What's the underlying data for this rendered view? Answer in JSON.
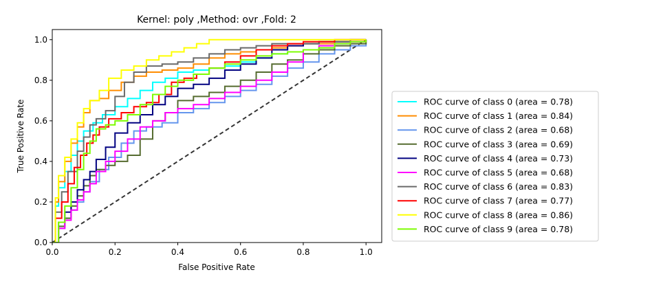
{
  "chart_data": {
    "type": "line",
    "title": "Kernel: poly ,Method: ovr ,Fold: 2",
    "xlabel": "False Positive Rate",
    "ylabel": "True Positive Rate",
    "xlim": [
      0,
      1.05
    ],
    "ylim": [
      0,
      1.05
    ],
    "xticks": [
      "0.0",
      "0.2",
      "0.4",
      "0.6",
      "0.8",
      "1.0"
    ],
    "yticks": [
      "0.0",
      "0.2",
      "0.4",
      "0.6",
      "0.8",
      "1.0"
    ],
    "grid": false,
    "legend_position": "right",
    "diagonal": {
      "x": [
        0,
        1
      ],
      "y": [
        0,
        1
      ],
      "color": "#333333",
      "style": "dashed"
    },
    "series": [
      {
        "name": "ROC curve of class 0 (area = 0.78)",
        "color": "#00FFFF",
        "x": [
          0,
          0.01,
          0.02,
          0.04,
          0.06,
          0.08,
          0.1,
          0.13,
          0.16,
          0.2,
          0.24,
          0.28,
          0.32,
          0.36,
          0.4,
          0.45,
          0.5,
          0.55,
          0.6,
          0.65,
          0.7,
          0.75,
          0.8,
          0.85,
          0.9,
          0.95,
          1.0
        ],
        "y": [
          0,
          0.18,
          0.27,
          0.35,
          0.43,
          0.5,
          0.55,
          0.59,
          0.63,
          0.67,
          0.71,
          0.75,
          0.79,
          0.81,
          0.84,
          0.85,
          0.86,
          0.87,
          0.89,
          0.91,
          0.93,
          0.94,
          0.95,
          0.96,
          0.98,
          0.99,
          1.0
        ]
      },
      {
        "name": "ROC curve of class 1 (area = 0.84)",
        "color": "#FF8C00",
        "x": [
          0,
          0.01,
          0.02,
          0.04,
          0.06,
          0.08,
          0.1,
          0.12,
          0.15,
          0.18,
          0.22,
          0.26,
          0.3,
          0.35,
          0.4,
          0.45,
          0.5,
          0.55,
          0.6,
          0.65,
          0.7,
          0.75,
          0.8,
          0.85,
          0.9,
          0.95,
          1.0
        ],
        "y": [
          0,
          0.2,
          0.3,
          0.4,
          0.49,
          0.57,
          0.64,
          0.7,
          0.71,
          0.75,
          0.79,
          0.82,
          0.84,
          0.85,
          0.86,
          0.88,
          0.91,
          0.93,
          0.94,
          0.95,
          0.96,
          0.97,
          0.98,
          0.98,
          0.99,
          0.99,
          1.0
        ]
      },
      {
        "name": "ROC curve of class 2 (area = 0.68)",
        "color": "#6495ED",
        "x": [
          0,
          0.02,
          0.04,
          0.06,
          0.08,
          0.1,
          0.12,
          0.15,
          0.18,
          0.22,
          0.26,
          0.3,
          0.35,
          0.4,
          0.45,
          0.5,
          0.55,
          0.6,
          0.65,
          0.7,
          0.75,
          0.8,
          0.85,
          0.9,
          0.95,
          1.0
        ],
        "y": [
          0,
          0.07,
          0.12,
          0.16,
          0.2,
          0.25,
          0.3,
          0.36,
          0.42,
          0.49,
          0.55,
          0.57,
          0.59,
          0.64,
          0.66,
          0.69,
          0.72,
          0.75,
          0.78,
          0.82,
          0.86,
          0.89,
          0.93,
          0.95,
          0.97,
          1.0
        ]
      },
      {
        "name": "ROC curve of class 3 (area = 0.69)",
        "color": "#556B2F",
        "x": [
          0,
          0.02,
          0.04,
          0.06,
          0.08,
          0.1,
          0.12,
          0.14,
          0.17,
          0.2,
          0.24,
          0.28,
          0.32,
          0.36,
          0.4,
          0.45,
          0.5,
          0.55,
          0.6,
          0.65,
          0.7,
          0.75,
          0.8,
          0.85,
          0.9,
          0.95,
          1.0
        ],
        "y": [
          0,
          0.08,
          0.12,
          0.18,
          0.23,
          0.28,
          0.33,
          0.36,
          0.38,
          0.4,
          0.43,
          0.51,
          0.6,
          0.64,
          0.7,
          0.72,
          0.74,
          0.77,
          0.8,
          0.84,
          0.88,
          0.9,
          0.93,
          0.95,
          0.97,
          0.98,
          1.0
        ]
      },
      {
        "name": "ROC curve of class 4 (area = 0.73)",
        "color": "#000080",
        "x": [
          0,
          0.02,
          0.04,
          0.06,
          0.08,
          0.1,
          0.12,
          0.14,
          0.17,
          0.2,
          0.24,
          0.28,
          0.32,
          0.36,
          0.4,
          0.45,
          0.5,
          0.55,
          0.6,
          0.65,
          0.7,
          0.75,
          0.8,
          0.85,
          0.9,
          0.95,
          1.0
        ],
        "y": [
          0,
          0.1,
          0.15,
          0.2,
          0.26,
          0.31,
          0.35,
          0.41,
          0.47,
          0.54,
          0.59,
          0.63,
          0.68,
          0.72,
          0.76,
          0.78,
          0.81,
          0.85,
          0.88,
          0.91,
          0.95,
          0.97,
          0.98,
          0.99,
          0.99,
          1.0,
          1.0
        ]
      },
      {
        "name": "ROC curve of class 5 (area = 0.68)",
        "color": "#FF00FF",
        "x": [
          0,
          0.02,
          0.04,
          0.06,
          0.08,
          0.1,
          0.12,
          0.14,
          0.17,
          0.2,
          0.24,
          0.28,
          0.32,
          0.36,
          0.4,
          0.45,
          0.5,
          0.55,
          0.6,
          0.65,
          0.7,
          0.75,
          0.8,
          0.85,
          0.9,
          0.95,
          1.0
        ],
        "y": [
          0,
          0.07,
          0.11,
          0.16,
          0.21,
          0.25,
          0.29,
          0.35,
          0.4,
          0.45,
          0.51,
          0.57,
          0.6,
          0.64,
          0.66,
          0.68,
          0.71,
          0.74,
          0.77,
          0.8,
          0.84,
          0.89,
          0.95,
          0.97,
          0.98,
          0.99,
          1.0
        ]
      },
      {
        "name": "ROC curve of class 6 (area = 0.83)",
        "color": "#696969",
        "x": [
          0,
          0.01,
          0.03,
          0.05,
          0.08,
          0.1,
          0.12,
          0.14,
          0.17,
          0.2,
          0.23,
          0.26,
          0.3,
          0.35,
          0.4,
          0.45,
          0.5,
          0.55,
          0.6,
          0.65,
          0.7,
          0.75,
          0.8,
          0.85,
          0.9,
          0.95,
          1.0
        ],
        "y": [
          0,
          0.15,
          0.25,
          0.35,
          0.45,
          0.52,
          0.58,
          0.61,
          0.65,
          0.72,
          0.79,
          0.84,
          0.87,
          0.88,
          0.89,
          0.91,
          0.93,
          0.95,
          0.96,
          0.97,
          0.98,
          0.98,
          0.98,
          0.99,
          0.99,
          1.0,
          1.0
        ]
      },
      {
        "name": "ROC curve of class 7 (area = 0.77)",
        "color": "#FF0000",
        "x": [
          0,
          0.01,
          0.03,
          0.05,
          0.07,
          0.09,
          0.11,
          0.13,
          0.15,
          0.18,
          0.22,
          0.26,
          0.3,
          0.34,
          0.38,
          0.42,
          0.46,
          0.5,
          0.55,
          0.6,
          0.65,
          0.7,
          0.75,
          0.8,
          0.85,
          0.9,
          0.95,
          1.0
        ],
        "y": [
          0,
          0.12,
          0.2,
          0.29,
          0.37,
          0.43,
          0.49,
          0.53,
          0.57,
          0.61,
          0.64,
          0.67,
          0.69,
          0.73,
          0.79,
          0.81,
          0.83,
          0.86,
          0.89,
          0.92,
          0.95,
          0.97,
          0.98,
          0.99,
          0.99,
          1.0,
          1.0,
          1.0
        ]
      },
      {
        "name": "ROC curve of class 8 (area = 0.86)",
        "color": "#FFFF00",
        "x": [
          0,
          0.01,
          0.02,
          0.04,
          0.06,
          0.08,
          0.1,
          0.12,
          0.15,
          0.18,
          0.22,
          0.26,
          0.3,
          0.34,
          0.38,
          0.42,
          0.46,
          0.5,
          0.55,
          0.6,
          0.65,
          0.7,
          0.75,
          0.8,
          0.85,
          0.9,
          0.95,
          1.0
        ],
        "y": [
          0,
          0.22,
          0.33,
          0.42,
          0.51,
          0.59,
          0.66,
          0.7,
          0.75,
          0.81,
          0.85,
          0.87,
          0.9,
          0.92,
          0.94,
          0.96,
          0.98,
          1.0,
          1.0,
          1.0,
          1.0,
          1.0,
          1.0,
          1.0,
          1.0,
          1.0,
          1.0,
          1.0
        ]
      },
      {
        "name": "ROC curve of class 9 (area = 0.78)",
        "color": "#7CFC00",
        "x": [
          0,
          0.02,
          0.04,
          0.06,
          0.08,
          0.1,
          0.12,
          0.14,
          0.17,
          0.2,
          0.24,
          0.28,
          0.32,
          0.36,
          0.4,
          0.45,
          0.5,
          0.55,
          0.6,
          0.65,
          0.7,
          0.75,
          0.8,
          0.85,
          0.9,
          0.95,
          1.0
        ],
        "y": [
          0,
          0.1,
          0.18,
          0.27,
          0.36,
          0.44,
          0.5,
          0.56,
          0.58,
          0.6,
          0.63,
          0.68,
          0.73,
          0.77,
          0.8,
          0.83,
          0.86,
          0.88,
          0.9,
          0.92,
          0.93,
          0.94,
          0.95,
          0.96,
          0.98,
          0.99,
          1.0
        ]
      }
    ]
  }
}
